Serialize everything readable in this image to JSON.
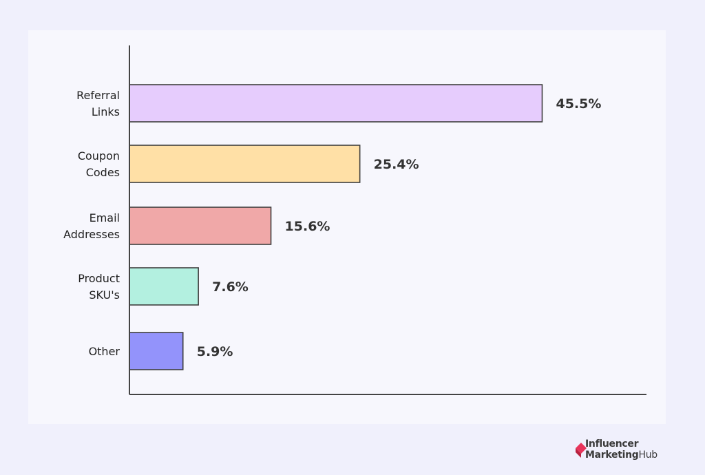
{
  "chart_data": {
    "type": "bar",
    "orientation": "horizontal",
    "categories": [
      [
        "Referral",
        "Links"
      ],
      [
        "Coupon",
        "Codes"
      ],
      [
        "Email",
        "Addresses"
      ],
      [
        "Product",
        "SKU's"
      ],
      [
        "Other"
      ]
    ],
    "values": [
      45.5,
      25.4,
      15.6,
      7.6,
      5.9
    ],
    "value_labels": [
      "45.5%",
      "25.4%",
      "15.6%",
      "7.6%",
      "5.9%"
    ],
    "colors": [
      "#e6ccfd",
      "#ffe0a6",
      "#f0a8a8",
      "#b3f0e0",
      "#9393fb"
    ],
    "xlim": [
      0,
      57
    ],
    "grid": false,
    "title": "",
    "xlabel": "",
    "ylabel": ""
  },
  "brand": {
    "line1": "Influencer",
    "line2_bold": "Marketing",
    "line2_rest": "Hub",
    "icon": "influencer-marketing-hub-logo-icon",
    "color": "#e8345b"
  }
}
